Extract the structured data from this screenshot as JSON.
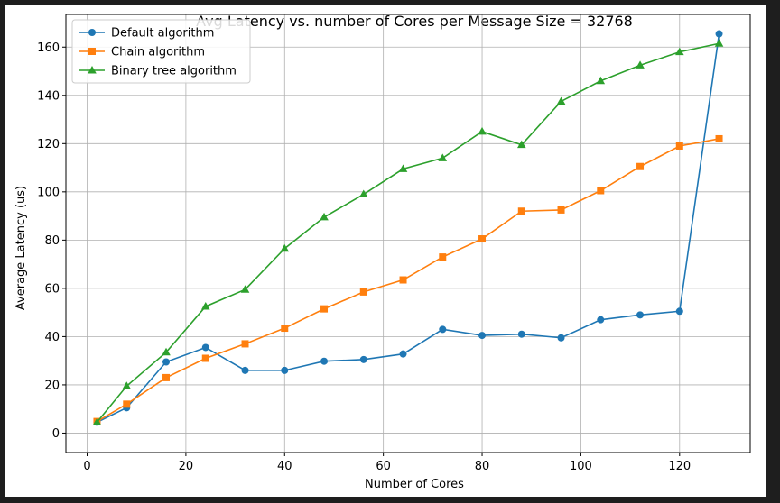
{
  "chart_data": {
    "type": "line",
    "title": "Avg Latency vs. number of Cores per Message Size = 32768",
    "xlabel": "Number of Cores",
    "ylabel": "Average Latency (us)",
    "xlim": [
      -4.3,
      134.3
    ],
    "ylim": [
      -8.05,
      173.55
    ],
    "xticks": [
      0,
      20,
      40,
      60,
      80,
      100,
      120
    ],
    "yticks": [
      0,
      20,
      40,
      60,
      80,
      100,
      120,
      140,
      160
    ],
    "grid": true,
    "legend_position": "top-left",
    "x": [
      2,
      8,
      16,
      24,
      32,
      40,
      48,
      56,
      64,
      72,
      80,
      88,
      96,
      104,
      112,
      120,
      128
    ],
    "series": [
      {
        "name": "Default algorithm",
        "color": "#1f77b4",
        "marker": "circle",
        "values": [
          4.5,
          10.5,
          29.5,
          35.5,
          26.0,
          26.0,
          29.8,
          30.5,
          32.8,
          43.0,
          40.5,
          41.0,
          39.5,
          47.0,
          49.0,
          50.5,
          165.5
        ]
      },
      {
        "name": "Chain algorithm",
        "color": "#ff7f0e",
        "marker": "square",
        "values": [
          4.8,
          12.0,
          23.0,
          31.0,
          37.0,
          43.5,
          51.5,
          58.5,
          63.5,
          73.0,
          80.5,
          92.0,
          92.5,
          100.5,
          110.5,
          119.0,
          122.0
        ]
      },
      {
        "name": "Binary tree algorithm",
        "color": "#2ca02c",
        "marker": "triangle",
        "values": [
          4.5,
          19.5,
          33.5,
          52.5,
          59.5,
          76.5,
          89.5,
          99.0,
          109.5,
          114.0,
          125.0,
          119.5,
          137.5,
          146.0,
          152.5,
          158.0,
          161.5
        ]
      }
    ]
  }
}
